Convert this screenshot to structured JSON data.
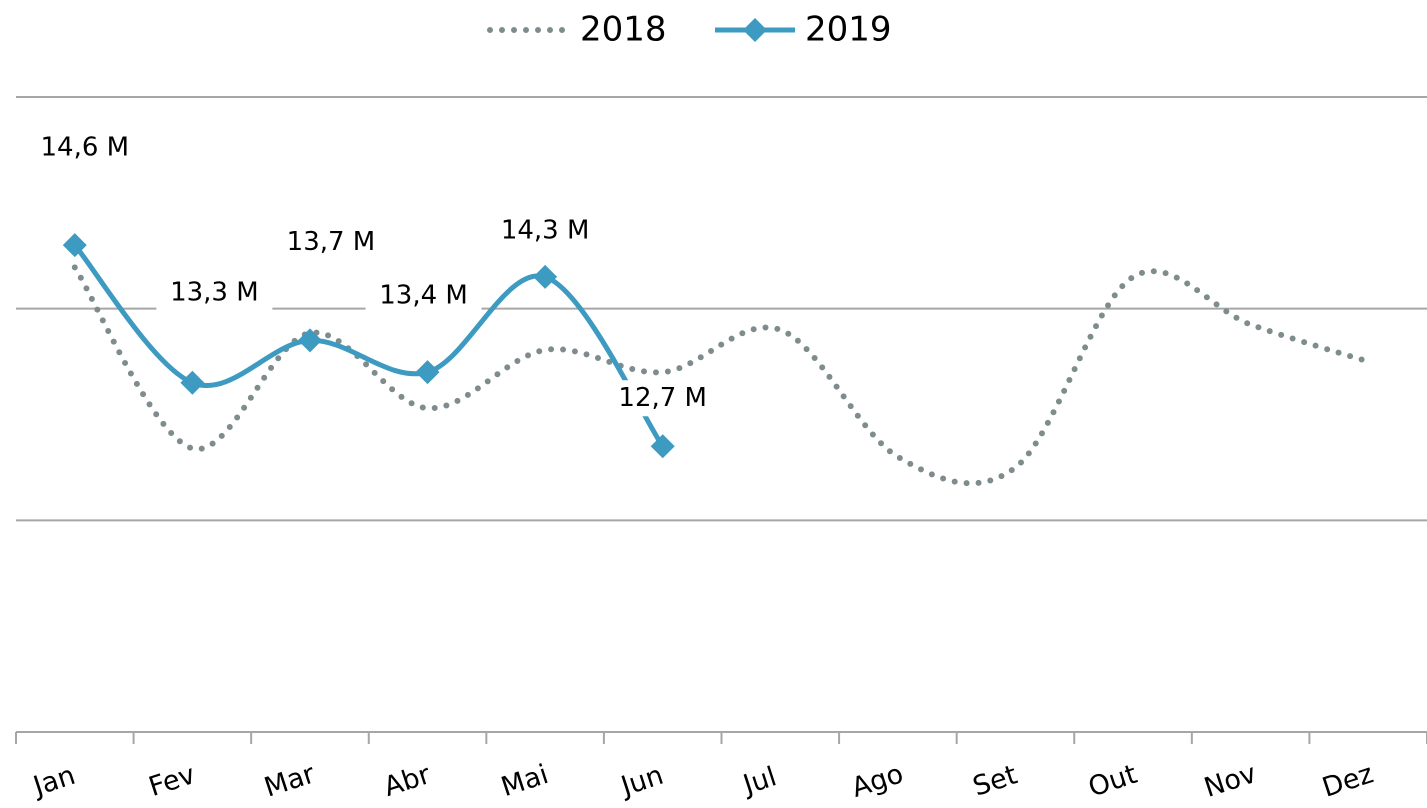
{
  "chart_data": {
    "type": "line",
    "categories": [
      "Jan",
      "Fev",
      "Mar",
      "Abr",
      "Mai",
      "Jun",
      "Jul",
      "Ago",
      "Set",
      "Out",
      "Nov",
      "Dez"
    ],
    "series": [
      {
        "name": "2018",
        "color": "#7f8c8d",
        "style": "dotted",
        "values": [
          14.39,
          12.68,
          13.77,
          13.06,
          13.61,
          13.4,
          13.8,
          12.6,
          12.5,
          14.3,
          13.85,
          13.5
        ]
      },
      {
        "name": "2019",
        "color": "#3d9ac1",
        "marker": "diamond",
        "values": [
          14.6,
          13.3,
          13.7,
          13.4,
          14.3,
          12.7,
          null,
          null,
          null,
          null,
          null,
          null
        ],
        "value_labels": [
          "14,6 M",
          "13,3 M",
          "13,7 M",
          "13,4 M",
          "14,3 M",
          "12,7 M",
          null,
          null,
          null,
          null,
          null,
          null
        ]
      }
    ],
    "ylim": [
      10,
      16
    ],
    "yticks": [
      10,
      12,
      14,
      16
    ],
    "grid": true,
    "legend": "top"
  }
}
